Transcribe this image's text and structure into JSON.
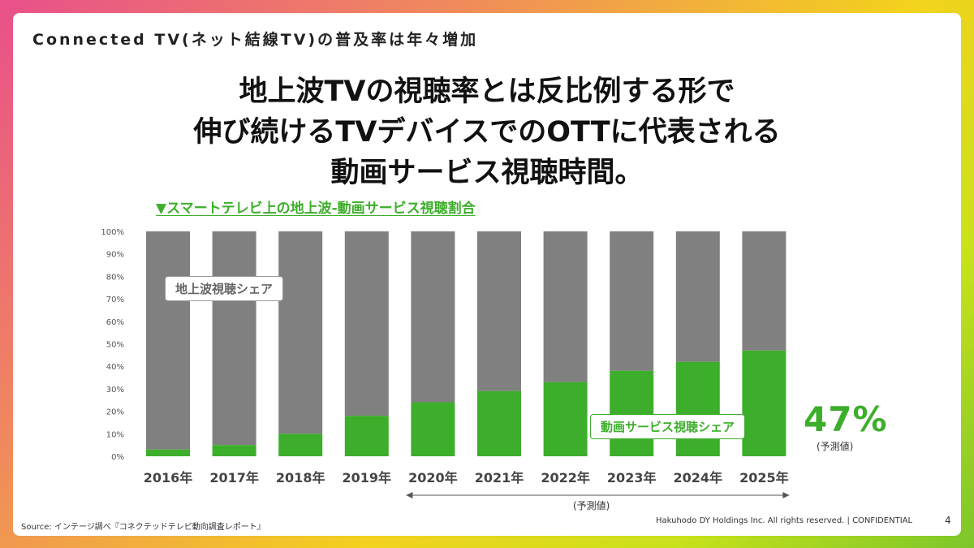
{
  "header": {
    "title": "Connected TV(ネット結線TV)の普及率は年々増加"
  },
  "headline": {
    "line1": "地上波TVの視聴率とは反比例する形で",
    "line2": "伸び続けるTVデバイスでのOTTに代表される",
    "line3": "動画サービス視聴時間。"
  },
  "chart_heading": "▼スマートテレビ上の地上波-動画サービス視聴割合",
  "chart_data": {
    "type": "bar",
    "stacked": true,
    "categories": [
      "2016年",
      "2017年",
      "2018年",
      "2019年",
      "2020年",
      "2021年",
      "2022年",
      "2023年",
      "2024年",
      "2025年"
    ],
    "series": [
      {
        "name": "動画サービス視聴シェア",
        "values": [
          3,
          5,
          10,
          18,
          24,
          29,
          33,
          38,
          42,
          47
        ],
        "color": "#3dae2b"
      },
      {
        "name": "地上波視聴シェア",
        "values": [
          97,
          95,
          90,
          82,
          76,
          71,
          67,
          62,
          58,
          53
        ],
        "color": "#808080"
      }
    ],
    "y_ticks": [
      "0%",
      "10%",
      "20%",
      "30%",
      "40%",
      "50%",
      "60%",
      "70%",
      "80%",
      "90%",
      "100%"
    ],
    "ylim": [
      0,
      100
    ],
    "grid": false
  },
  "labels": {
    "tv_share": "地上波視聴シェア",
    "ott_share": "動画サービス視聴シェア",
    "final_pct": "47%",
    "final_pct_note": "(予測値)",
    "forecast_note": "(予測値)"
  },
  "footer": {
    "source": "Source: インテージ調べ『コネクテッドテレビ動向調査レポート』",
    "copyright": "Hakuhodo DY Holdings Inc. All rights reserved. | CONFIDENTIAL",
    "page": "4"
  }
}
